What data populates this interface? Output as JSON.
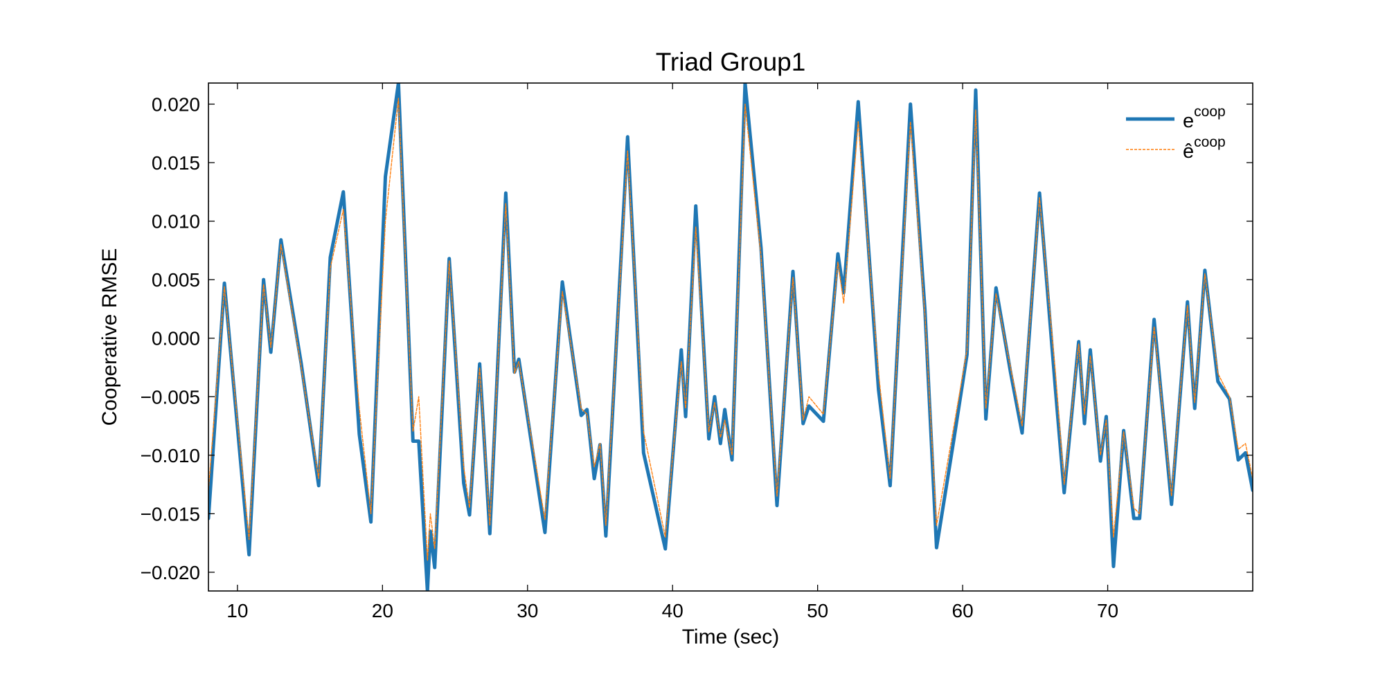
{
  "chart_data": {
    "type": "line",
    "title": "Triad Group1",
    "x_label": "Time (sec)",
    "y_label": "Cooperative RMSE",
    "x": [
      8,
      9.1,
      10.8,
      11.8,
      12.3,
      13.0,
      14.4,
      15.6,
      16.4,
      17.3,
      18.4,
      19.2,
      20.2,
      21.1,
      22.1,
      22.5,
      23.1,
      23.3,
      23.6,
      24.6,
      25.6,
      26.0,
      26.7,
      27.4,
      28.5,
      29.1,
      29.4,
      31.2,
      32.4,
      33.7,
      34.1,
      34.6,
      35.0,
      35.4,
      36.9,
      38.0,
      39.5,
      40.6,
      40.9,
      41.6,
      42.5,
      42.9,
      43.3,
      43.6,
      44.1,
      45.0,
      46.1,
      47.2,
      48.3,
      49.0,
      49.4,
      50.4,
      51.4,
      51.8,
      52.8,
      54.2,
      55.0,
      56.4,
      57.4,
      58.2,
      59.4,
      60.3,
      60.9,
      61.6,
      62.3,
      63.3,
      64.1,
      65.3,
      66.4,
      67.0,
      68.0,
      68.4,
      68.8,
      69.5,
      69.9,
      70.4,
      71.1,
      71.8,
      72.2,
      73.2,
      74.4,
      75.5,
      76.0,
      76.7,
      77.6,
      78.4,
      79.0,
      79.5,
      80.0
    ],
    "series": [
      {
        "name": "e",
        "superscript": "coop",
        "color": "#1f77b4",
        "style": "solid",
        "values": [
          -0.0154,
          0.0047,
          -0.0185,
          0.005,
          -0.0012,
          0.0084,
          -0.0022,
          -0.0126,
          0.0069,
          0.0125,
          -0.0082,
          -0.0157,
          0.0138,
          0.0218,
          -0.0088,
          -0.0088,
          -0.0216,
          -0.0165,
          -0.0196,
          0.0068,
          -0.0124,
          -0.0151,
          -0.0022,
          -0.0167,
          0.0124,
          -0.0029,
          -0.0018,
          -0.0166,
          0.0048,
          -0.0066,
          -0.0061,
          -0.012,
          -0.0091,
          -0.0169,
          0.0172,
          -0.0098,
          -0.018,
          -0.001,
          -0.0067,
          0.0113,
          -0.0086,
          -0.005,
          -0.009,
          -0.0061,
          -0.0104,
          0.0218,
          0.0077,
          -0.0143,
          0.0057,
          -0.0073,
          -0.0058,
          -0.0071,
          0.0072,
          0.0039,
          0.0202,
          -0.0044,
          -0.0126,
          0.02,
          0.0024,
          -0.0179,
          -0.0086,
          -0.0014,
          0.0212,
          -0.0069,
          0.0043,
          -0.0029,
          -0.0081,
          0.0124,
          -0.0044,
          -0.0132,
          -0.0003,
          -0.0073,
          -0.001,
          -0.0105,
          -0.0067,
          -0.0195,
          -0.0079,
          -0.0154,
          -0.0154,
          0.0016,
          -0.0142,
          0.0031,
          -0.006,
          0.0058,
          -0.0037,
          -0.0052,
          -0.0104,
          -0.0098,
          -0.013
        ]
      },
      {
        "name": "ê",
        "superscript": "coop",
        "color": "#ff7f0e",
        "style": "dashed",
        "values": [
          -0.013,
          0.0044,
          -0.0172,
          0.0046,
          -0.0008,
          0.008,
          -0.0025,
          -0.012,
          0.006,
          0.011,
          -0.006,
          -0.015,
          0.01,
          0.0205,
          -0.008,
          -0.005,
          -0.019,
          -0.015,
          -0.018,
          0.0066,
          -0.011,
          -0.0145,
          -0.0025,
          -0.016,
          0.0115,
          -0.003,
          -0.002,
          -0.0155,
          0.004,
          -0.006,
          -0.0065,
          -0.011,
          -0.009,
          -0.016,
          0.016,
          -0.008,
          -0.017,
          -0.002,
          -0.006,
          0.0095,
          -0.008,
          -0.0055,
          -0.0085,
          -0.007,
          -0.01,
          0.02,
          0.007,
          -0.0135,
          0.0052,
          -0.007,
          -0.005,
          -0.0065,
          0.0065,
          0.003,
          0.0185,
          -0.003,
          -0.012,
          0.0185,
          0.002,
          -0.016,
          -0.0075,
          -0.001,
          0.0195,
          -0.006,
          0.0038,
          -0.0025,
          -0.0075,
          0.012,
          -0.003,
          -0.0125,
          -0.0005,
          -0.0065,
          -0.0015,
          -0.01,
          -0.007,
          -0.017,
          -0.008,
          -0.0145,
          -0.015,
          0.001,
          -0.0135,
          0.0028,
          -0.0055,
          0.0055,
          -0.003,
          -0.005,
          -0.0095,
          -0.009,
          -0.012
        ]
      }
    ],
    "xlim": [
      8,
      80
    ],
    "xticks": [
      10,
      20,
      30,
      40,
      50,
      60,
      70
    ],
    "ylim": [
      -0.0216,
      0.0218
    ],
    "yticks": [
      {
        "value": -0.02,
        "label": "−0.020"
      },
      {
        "value": -0.015,
        "label": "−0.015"
      },
      {
        "value": -0.01,
        "label": "−0.010"
      },
      {
        "value": -0.005,
        "label": "−0.005"
      },
      {
        "value": 0,
        "label": "0.000"
      },
      {
        "value": 0.005,
        "label": "0.005"
      },
      {
        "value": 0.01,
        "label": "0.010"
      },
      {
        "value": 0.015,
        "label": "0.015"
      },
      {
        "value": 0.02,
        "label": "0.020"
      }
    ],
    "grid": false,
    "legend": "upper right"
  }
}
